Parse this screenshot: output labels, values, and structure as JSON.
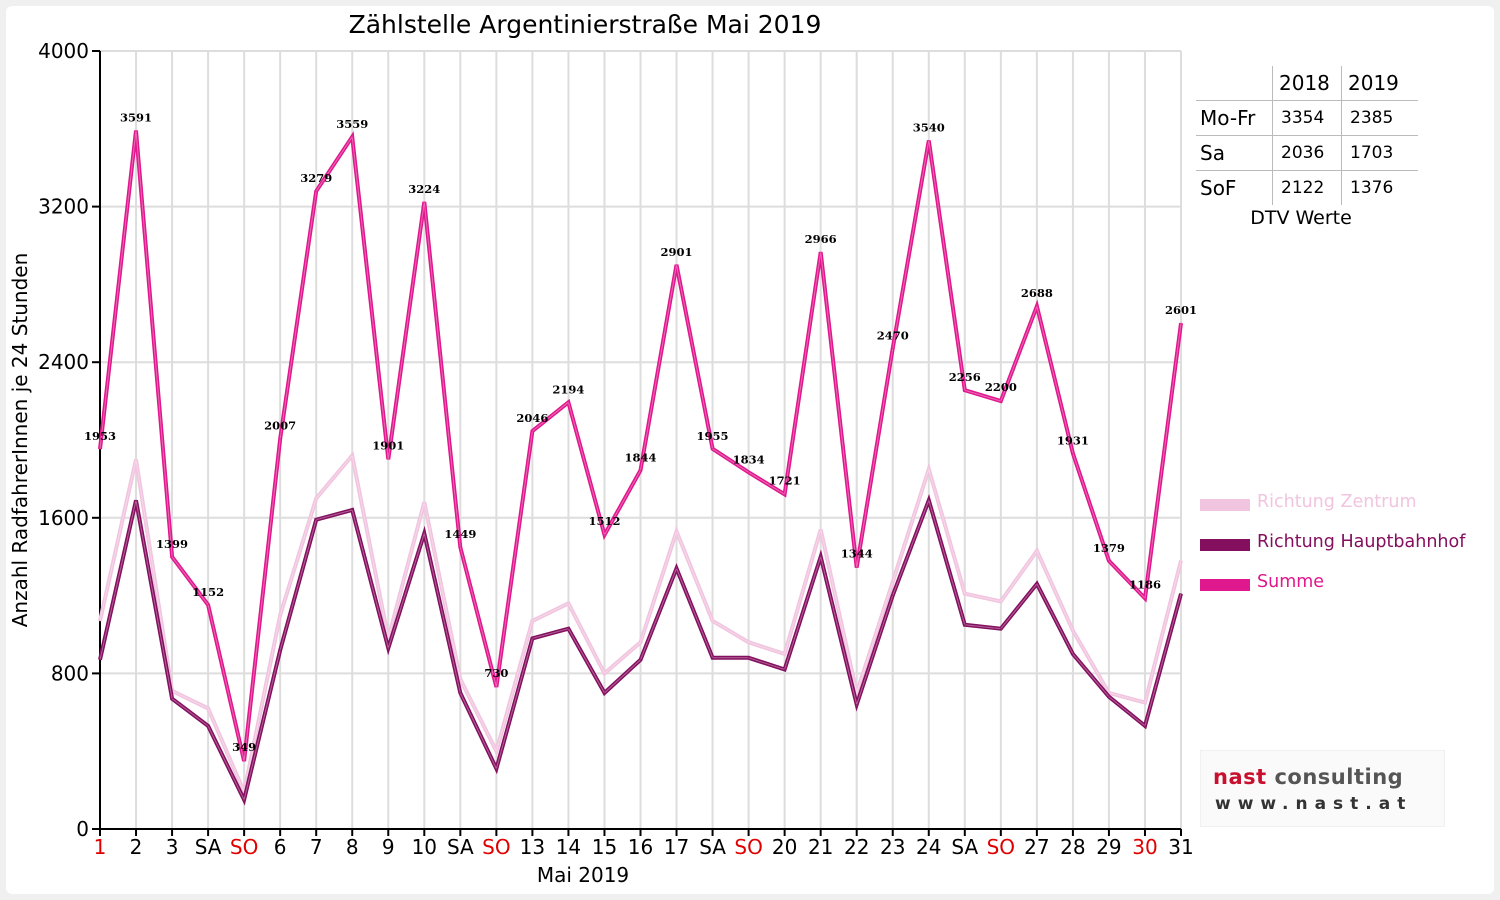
{
  "colors": {
    "zentrum": "#f1c4df",
    "hauptbahnhof": "#850f5f",
    "summe": "#e0188d",
    "grid": "#dddddd",
    "weekend": "#e00000"
  },
  "chart_data": {
    "type": "line",
    "title": "Zählstelle Argentinierstraße Mai 2019",
    "xlabel": "Mai 2019",
    "ylabel": "Anzahl RadfahrerInnen je 24 Stunden",
    "ylim": [
      0,
      4000
    ],
    "yticks": [
      "0",
      "800",
      "1600",
      "2400",
      "3200",
      "4000"
    ],
    "categories": [
      "1",
      "2",
      "3",
      "SA",
      "SO",
      "6",
      "7",
      "8",
      "9",
      "10",
      "SA",
      "SO",
      "13",
      "14",
      "15",
      "16",
      "17",
      "SA",
      "SO",
      "20",
      "21",
      "22",
      "23",
      "24",
      "SA",
      "SO",
      "27",
      "28",
      "29",
      "30",
      "31"
    ],
    "red_categories": [
      0,
      4,
      11,
      18,
      25,
      29
    ],
    "grid": true,
    "legend_position": "right",
    "series": [
      {
        "name": "Richtung Zentrum",
        "color_key": "zentrum",
        "values": [
          1070,
          1900,
          710,
          620,
          190,
          1100,
          1700,
          1920,
          980,
          1680,
          770,
          400,
          1070,
          1160,
          800,
          960,
          1530,
          1070,
          960,
          900,
          1540,
          700,
          1270,
          1850,
          1210,
          1170,
          1430,
          1020,
          700,
          650,
          1380
        ]
      },
      {
        "name": "Richtung Hauptbahnhof",
        "color_key": "hauptbahnhof",
        "values": [
          870,
          1690,
          670,
          530,
          150,
          920,
          1590,
          1640,
          930,
          1520,
          700,
          310,
          980,
          1030,
          700,
          870,
          1340,
          880,
          880,
          820,
          1400,
          640,
          1200,
          1690,
          1050,
          1030,
          1260,
          900,
          680,
          530,
          1210
        ]
      },
      {
        "name": "Summe",
        "color_key": "summe",
        "values": [
          1953,
          3591,
          1399,
          1152,
          349,
          2007,
          3279,
          3559,
          1901,
          3224,
          1449,
          730,
          2046,
          2194,
          1512,
          1844,
          2901,
          1955,
          1834,
          1721,
          2966,
          1344,
          2470,
          3540,
          2256,
          2200,
          2688,
          1931,
          1379,
          1186,
          2601
        ],
        "labels": [
          "1953",
          "3591",
          "1399",
          "1152",
          "349",
          "2007",
          "3279",
          "3559",
          "1901",
          "3224",
          "1449",
          "730",
          "2046",
          "2194",
          "1512",
          "1844",
          "2901",
          "1955",
          "1834",
          "1721",
          "2966",
          "1344",
          "2470",
          "3540",
          "2256",
          "2200",
          "2688",
          "1931",
          "1379",
          "1186",
          "2601"
        ]
      }
    ]
  },
  "dtv_table": {
    "headers": [
      "2018",
      "2019"
    ],
    "rows": [
      {
        "label": "Mo-Fr",
        "v2018": "3354",
        "v2019": "2385"
      },
      {
        "label": "Sa",
        "v2018": "2036",
        "v2019": "1703"
      },
      {
        "label": "SoF",
        "v2018": "2122",
        "v2019": "1376"
      }
    ],
    "caption": "DTV Werte"
  },
  "logo": {
    "word1": "nast",
    "word2": "consulting",
    "url": "www.nast.at"
  }
}
